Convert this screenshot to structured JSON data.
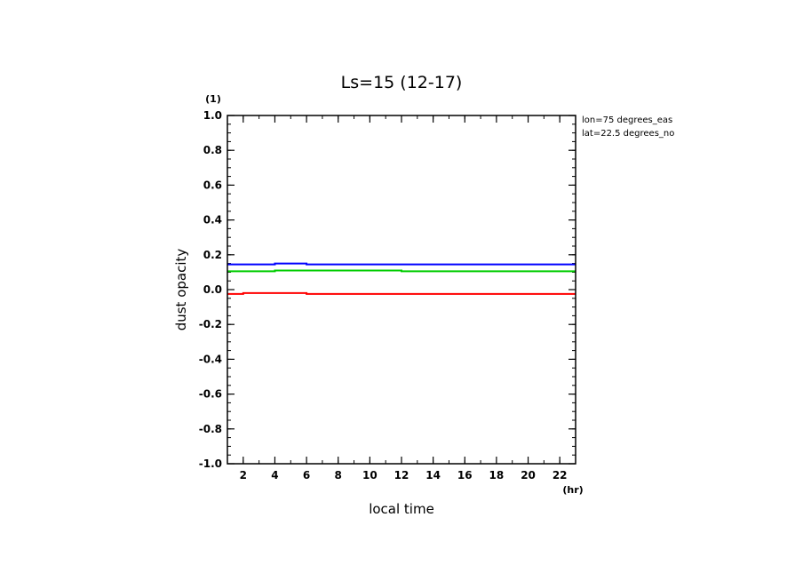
{
  "chart_data": {
    "type": "line",
    "title": "Ls=15 (12-17)",
    "xlabel": "local time",
    "ylabel": "dust opacity",
    "x_unit": "(hr)",
    "y_unit": "(1)",
    "xlim": [
      1,
      23
    ],
    "ylim": [
      -1.0,
      1.0
    ],
    "x_ticks": [
      2,
      4,
      6,
      8,
      10,
      12,
      14,
      16,
      18,
      20,
      22
    ],
    "y_ticks": [
      "-1.0",
      "-0.8",
      "-0.6",
      "-0.4",
      "-0.2",
      "0.0",
      "0.2",
      "0.4",
      "0.6",
      "0.8",
      "1.0"
    ],
    "annotations": [
      "lon=75 degrees_eas",
      "lat=22.5 degrees_no"
    ],
    "grid": false,
    "series": [
      {
        "color": "#0000ff",
        "x": [
          1,
          3,
          5,
          7,
          9,
          11,
          13,
          15,
          17,
          19,
          21,
          23
        ],
        "y": [
          0.145,
          0.145,
          0.15,
          0.145,
          0.145,
          0.145,
          0.145,
          0.145,
          0.145,
          0.145,
          0.145,
          0.145
        ]
      },
      {
        "color": "#00cc00",
        "x": [
          1,
          3,
          5,
          7,
          9,
          11,
          13,
          15,
          17,
          19,
          21,
          23
        ],
        "y": [
          0.105,
          0.105,
          0.11,
          0.11,
          0.11,
          0.11,
          0.105,
          0.105,
          0.105,
          0.105,
          0.105,
          0.105
        ]
      },
      {
        "color": "#ff0000",
        "x": [
          1,
          3,
          5,
          7,
          9,
          11,
          13,
          15,
          17,
          19,
          21,
          23
        ],
        "y": [
          -0.025,
          -0.02,
          -0.02,
          -0.025,
          -0.025,
          -0.025,
          -0.025,
          -0.025,
          -0.025,
          -0.025,
          -0.025,
          -0.025
        ]
      }
    ]
  }
}
